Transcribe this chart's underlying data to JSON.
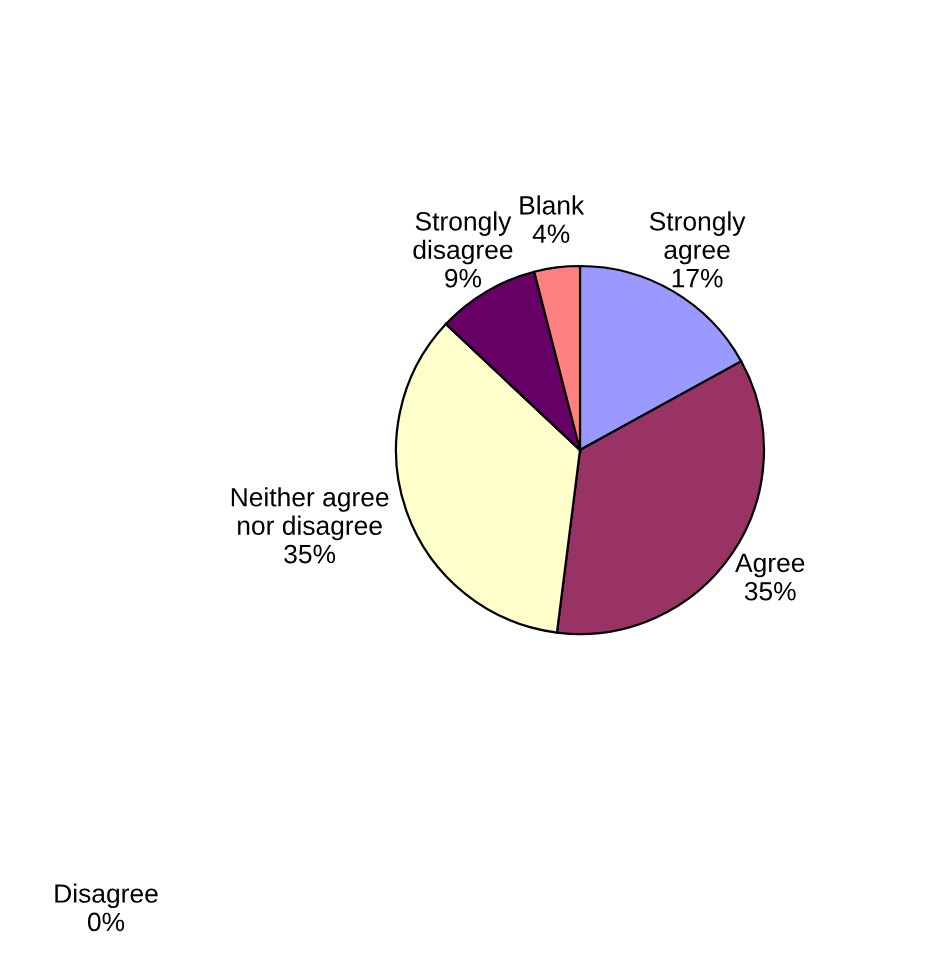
{
  "chart_data": {
    "type": "pie",
    "categories": [
      "Strongly\nagree",
      "Agree",
      "Neither agree\nnor disagree",
      "Disagree",
      "Strongly\ndisagree",
      "Blank"
    ],
    "values": [
      17,
      35,
      35,
      0,
      9,
      4
    ],
    "colors": [
      "#9999ff",
      "#993366",
      "#ffffcc",
      "#ccffff",
      "#660066",
      "#ff8080"
    ],
    "value_labels": [
      "17%",
      "35%",
      "35%",
      "0%",
      "9%",
      "4%"
    ]
  }
}
